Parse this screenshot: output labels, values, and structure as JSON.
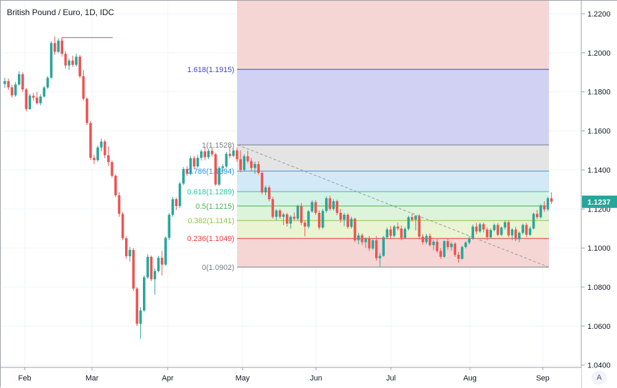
{
  "header": {
    "symbol_title": "British Pound / Euro, 1D, IDC"
  },
  "auto_scale_label": "A",
  "colors": {
    "up": "#26a69a",
    "down": "#ef5350",
    "axis_text": "#131722",
    "price_tag": "#26a69a"
  },
  "chart_data": {
    "type": "candlestick",
    "title": "British Pound / Euro, 1D, IDC",
    "x_tick_labels": [
      "Feb",
      "Mar",
      "Apr",
      "May",
      "Jun",
      "Jul",
      "Aug",
      "Sep"
    ],
    "y_tick_labels": [
      "1.2200",
      "1.2000",
      "1.1800",
      "1.1600",
      "1.1400",
      "1.1200",
      "1.1000",
      "1.0800",
      "1.0600",
      "1.0400"
    ],
    "ylim": [
      1.0395,
      1.2265
    ],
    "last_price": "1.1237",
    "last_price_value": 1.1237,
    "grid": true,
    "prior_high_line": 1.2078,
    "trend_line": {
      "from": 1.1528,
      "to": 1.0902
    },
    "fibonacci": [
      {
        "ratio": "1.618",
        "label": "1.618(1.1915)",
        "value": 1.1915,
        "color": "#3c3fd1",
        "fill": "#d1d1f4"
      },
      {
        "ratio": "1",
        "label": "1(1.1528)",
        "value": 1.1528,
        "color": "#787b86",
        "fill": "#e4e4e4"
      },
      {
        "ratio": "0.786",
        "label": "0.786(1.1394)",
        "value": 1.1394,
        "color": "#2196f3",
        "fill": "#d3e9f7"
      },
      {
        "ratio": "0.618",
        "label": "0.618(1.1289)",
        "value": 1.1289,
        "color": "#26c6a0",
        "fill": "#d4f2e5"
      },
      {
        "ratio": "0.5",
        "label": "0.5(1.1215)",
        "value": 1.1215,
        "color": "#4caf50",
        "fill": "#def3dc"
      },
      {
        "ratio": "0.382",
        "label": "0.382(1.1141)",
        "value": 1.1141,
        "color": "#8bc34a",
        "fill": "#eaf3d2"
      },
      {
        "ratio": "0.236",
        "label": "0.236(1.1049)",
        "value": 1.1049,
        "color": "#e53935",
        "fill": "#f5d6d4"
      },
      {
        "ratio": "0",
        "label": "0(1.0902)",
        "value": 1.0902,
        "color": "#787b86",
        "fill": "#f5d6d4"
      }
    ],
    "series": [
      {
        "name": "GBPEUR",
        "candles": [
          [
            1.184,
            1.1872,
            1.182,
            1.1855
          ],
          [
            1.1855,
            1.1868,
            1.181,
            1.1823
          ],
          [
            1.1823,
            1.1834,
            1.177,
            1.1782
          ],
          [
            1.1782,
            1.185,
            1.1775,
            1.1838
          ],
          [
            1.1838,
            1.1905,
            1.183,
            1.189
          ],
          [
            1.189,
            1.19,
            1.18,
            1.1812
          ],
          [
            1.1812,
            1.182,
            1.17,
            1.1712
          ],
          [
            1.1712,
            1.179,
            1.1708,
            1.178
          ],
          [
            1.178,
            1.1795,
            1.1755,
            1.177
          ],
          [
            1.177,
            1.18,
            1.1735,
            1.1742
          ],
          [
            1.1742,
            1.1788,
            1.173,
            1.1776
          ],
          [
            1.1776,
            1.183,
            1.177,
            1.1822
          ],
          [
            1.1822,
            1.188,
            1.1815,
            1.1872
          ],
          [
            1.1872,
            1.206,
            1.1868,
            1.205
          ],
          [
            1.205,
            1.2085,
            1.199,
            1.2005
          ],
          [
            1.2005,
            1.2075,
            1.1998,
            1.2062
          ],
          [
            1.2062,
            1.207,
            1.198,
            1.1995
          ],
          [
            1.1995,
            1.2008,
            1.192,
            1.1935
          ],
          [
            1.1935,
            1.197,
            1.1912,
            1.196
          ],
          [
            1.196,
            1.1985,
            1.1928,
            1.1938
          ],
          [
            1.1938,
            1.1995,
            1.193,
            1.198
          ],
          [
            1.198,
            1.199,
            1.187,
            1.188
          ],
          [
            1.188,
            1.1912,
            1.1755,
            1.1765
          ],
          [
            1.1765,
            1.177,
            1.163,
            1.164
          ],
          [
            1.164,
            1.165,
            1.145,
            1.1462
          ],
          [
            1.1462,
            1.1478,
            1.143,
            1.145
          ],
          [
            1.145,
            1.1525,
            1.1442,
            1.1515
          ],
          [
            1.1515,
            1.156,
            1.1495,
            1.1545
          ],
          [
            1.1545,
            1.1555,
            1.146,
            1.1475
          ],
          [
            1.1475,
            1.152,
            1.142,
            1.144
          ],
          [
            1.144,
            1.1448,
            1.136,
            1.137
          ],
          [
            1.137,
            1.1378,
            1.126,
            1.127
          ],
          [
            1.127,
            1.1285,
            1.116,
            1.1175
          ],
          [
            1.1175,
            1.1185,
            1.104,
            1.105
          ],
          [
            1.105,
            1.106,
            1.0945,
            1.0958
          ],
          [
            1.0958,
            1.1005,
            1.093,
            1.099
          ],
          [
            1.099,
            1.1,
            1.078,
            1.0792
          ],
          [
            1.0792,
            1.08,
            1.06,
            1.0612
          ],
          [
            1.0612,
            1.0698,
            1.0535,
            1.068
          ],
          [
            1.068,
            1.086,
            1.0672,
            1.085
          ],
          [
            1.085,
            1.0968,
            1.0842,
            1.0955
          ],
          [
            1.0955,
            1.0962,
            1.083,
            1.084
          ],
          [
            1.084,
            1.0895,
            1.076,
            1.0882
          ],
          [
            1.0882,
            1.096,
            1.0875,
            1.095
          ],
          [
            1.095,
            1.0985,
            1.086,
            1.0915
          ],
          [
            1.0915,
            1.106,
            1.0908,
            1.1052
          ],
          [
            1.1052,
            1.118,
            1.104,
            1.117
          ],
          [
            1.117,
            1.1262,
            1.116,
            1.125
          ],
          [
            1.125,
            1.1258,
            1.1195,
            1.1215
          ],
          [
            1.1215,
            1.134,
            1.1205,
            1.133
          ],
          [
            1.133,
            1.1415,
            1.1322,
            1.1405
          ],
          [
            1.1405,
            1.142,
            1.137,
            1.138
          ],
          [
            1.138,
            1.147,
            1.1372,
            1.146
          ],
          [
            1.146,
            1.1472,
            1.1405,
            1.1418
          ],
          [
            1.1418,
            1.1478,
            1.141,
            1.1462
          ],
          [
            1.1462,
            1.1505,
            1.1448,
            1.1495
          ],
          [
            1.1495,
            1.1515,
            1.145,
            1.1465
          ],
          [
            1.1465,
            1.1508,
            1.1455,
            1.1498
          ],
          [
            1.1498,
            1.1515,
            1.1468,
            1.148
          ],
          [
            1.148,
            1.1488,
            1.1318,
            1.1325
          ],
          [
            1.1325,
            1.142,
            1.1318,
            1.141
          ],
          [
            1.141,
            1.143,
            1.1392,
            1.1418
          ],
          [
            1.1418,
            1.1492,
            1.141,
            1.1482
          ],
          [
            1.1482,
            1.152,
            1.146,
            1.1472
          ],
          [
            1.1472,
            1.151,
            1.1465,
            1.15
          ],
          [
            1.15,
            1.1515,
            1.144,
            1.1455
          ],
          [
            1.1455,
            1.15,
            1.1388,
            1.14
          ],
          [
            1.14,
            1.148,
            1.1392,
            1.147
          ],
          [
            1.147,
            1.1498,
            1.1435,
            1.1445
          ],
          [
            1.1445,
            1.1462,
            1.1395,
            1.141
          ],
          [
            1.141,
            1.1442,
            1.138,
            1.143
          ],
          [
            1.143,
            1.1445,
            1.1375,
            1.1385
          ],
          [
            1.1385,
            1.139,
            1.1275,
            1.1285
          ],
          [
            1.1285,
            1.132,
            1.127,
            1.131
          ],
          [
            1.131,
            1.132,
            1.124,
            1.125
          ],
          [
            1.125,
            1.1262,
            1.115,
            1.116
          ],
          [
            1.116,
            1.12,
            1.114,
            1.1192
          ],
          [
            1.1192,
            1.12,
            1.115,
            1.116
          ],
          [
            1.116,
            1.118,
            1.1118,
            1.1172
          ],
          [
            1.1172,
            1.118,
            1.111,
            1.1125
          ],
          [
            1.1125,
            1.1168,
            1.11,
            1.116
          ],
          [
            1.116,
            1.1182,
            1.114,
            1.115
          ],
          [
            1.115,
            1.1222,
            1.1142,
            1.1215
          ],
          [
            1.1215,
            1.123,
            1.1118,
            1.113
          ],
          [
            1.113,
            1.114,
            1.106,
            1.111
          ],
          [
            1.111,
            1.1195,
            1.11,
            1.1188
          ],
          [
            1.1188,
            1.1245,
            1.118,
            1.1235
          ],
          [
            1.1235,
            1.1245,
            1.117,
            1.118
          ],
          [
            1.118,
            1.1192,
            1.1095,
            1.1105
          ],
          [
            1.1105,
            1.12,
            1.1098,
            1.119
          ],
          [
            1.119,
            1.1265,
            1.118,
            1.1255
          ],
          [
            1.1255,
            1.1268,
            1.119,
            1.12
          ],
          [
            1.12,
            1.125,
            1.1192,
            1.124
          ],
          [
            1.124,
            1.1248,
            1.1168,
            1.118
          ],
          [
            1.118,
            1.12,
            1.113,
            1.1145
          ],
          [
            1.1145,
            1.118,
            1.1112,
            1.117
          ],
          [
            1.117,
            1.1178,
            1.1098,
            1.1108
          ],
          [
            1.1108,
            1.116,
            1.11,
            1.115
          ],
          [
            1.115,
            1.1155,
            1.103,
            1.104
          ],
          [
            1.104,
            1.1078,
            1.102,
            1.1065
          ],
          [
            1.1065,
            1.1075,
            1.1015,
            1.103
          ],
          [
            1.103,
            1.1055,
            1.1,
            1.1048
          ],
          [
            1.1048,
            1.1062,
            1.0985,
            1.0998
          ],
          [
            1.0998,
            1.1045,
            1.099,
            1.104
          ],
          [
            1.104,
            1.1062,
            1.0935,
            1.0948
          ],
          [
            1.0948,
            1.0975,
            1.0905,
            1.096
          ],
          [
            1.096,
            1.1062,
            1.0955,
            1.1055
          ],
          [
            1.1055,
            1.1105,
            1.1045,
            1.1095
          ],
          [
            1.1095,
            1.1112,
            1.105,
            1.1062
          ],
          [
            1.1062,
            1.1118,
            1.1055,
            1.111
          ],
          [
            1.111,
            1.113,
            1.109,
            1.11
          ],
          [
            1.11,
            1.1115,
            1.104,
            1.1052
          ],
          [
            1.1052,
            1.1108,
            1.1045,
            1.1098
          ],
          [
            1.1098,
            1.1165,
            1.109,
            1.1158
          ],
          [
            1.1158,
            1.1178,
            1.1135,
            1.1145
          ],
          [
            1.1145,
            1.1168,
            1.109,
            1.1165
          ],
          [
            1.1165,
            1.1172,
            1.1045,
            1.1058
          ],
          [
            1.1058,
            1.107,
            1.1018,
            1.103
          ],
          [
            1.103,
            1.1072,
            1.102,
            1.1062
          ],
          [
            1.1062,
            1.1075,
            1.1008,
            1.1015
          ],
          [
            1.1015,
            1.104,
            1.099,
            1.1032
          ],
          [
            1.1032,
            1.1045,
            1.0975,
            1.0985
          ],
          [
            1.0985,
            1.1,
            1.0945,
            1.0955
          ],
          [
            1.0955,
            1.104,
            1.095,
            1.1035
          ],
          [
            1.1035,
            1.105,
            1.099,
            1.1005
          ],
          [
            1.1005,
            1.103,
            1.0985,
            1.1022
          ],
          [
            1.1022,
            1.103,
            1.0955,
            1.0965
          ],
          [
            1.0965,
            1.098,
            1.0925,
            1.0945
          ],
          [
            1.0945,
            1.1012,
            1.094,
            1.1005
          ],
          [
            1.1005,
            1.1035,
            1.0998,
            1.1028
          ],
          [
            1.1028,
            1.106,
            1.102,
            1.105
          ],
          [
            1.105,
            1.112,
            1.1042,
            1.111
          ],
          [
            1.111,
            1.1128,
            1.107,
            1.1085
          ],
          [
            1.1085,
            1.113,
            1.1078,
            1.1122
          ],
          [
            1.1122,
            1.113,
            1.108,
            1.1095
          ],
          [
            1.1095,
            1.1105,
            1.104,
            1.1055
          ],
          [
            1.1055,
            1.11,
            1.1048,
            1.1092
          ],
          [
            1.1092,
            1.1125,
            1.1085,
            1.1118
          ],
          [
            1.1118,
            1.1128,
            1.106,
            1.1068
          ],
          [
            1.1068,
            1.111,
            1.106,
            1.1105
          ],
          [
            1.1105,
            1.114,
            1.1095,
            1.1132
          ],
          [
            1.1132,
            1.114,
            1.1055,
            1.1065
          ],
          [
            1.1065,
            1.1102,
            1.104,
            1.1095
          ],
          [
            1.1095,
            1.1108,
            1.1035,
            1.1045
          ],
          [
            1.1045,
            1.1085,
            1.103,
            1.1078
          ],
          [
            1.1078,
            1.1125,
            1.107,
            1.1118
          ],
          [
            1.1118,
            1.1128,
            1.1055,
            1.1068
          ],
          [
            1.1068,
            1.111,
            1.1062,
            1.11
          ],
          [
            1.11,
            1.1182,
            1.1095,
            1.1175
          ],
          [
            1.1175,
            1.1195,
            1.1148,
            1.1158
          ],
          [
            1.1158,
            1.1225,
            1.115,
            1.1218
          ],
          [
            1.1218,
            1.124,
            1.1185,
            1.1198
          ],
          [
            1.1198,
            1.1262,
            1.119,
            1.1255
          ],
          [
            1.1255,
            1.1285,
            1.1225,
            1.1237
          ]
        ]
      }
    ]
  }
}
